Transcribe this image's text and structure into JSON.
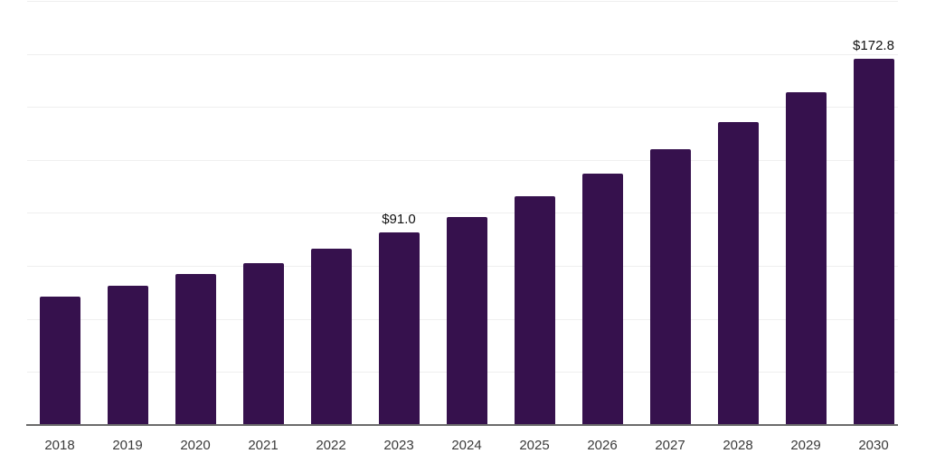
{
  "chart_data": {
    "type": "bar",
    "title": "",
    "xlabel": "",
    "ylabel": "",
    "categories": [
      "2018",
      "2019",
      "2020",
      "2021",
      "2022",
      "2023",
      "2024",
      "2025",
      "2026",
      "2027",
      "2028",
      "2029",
      "2030"
    ],
    "values": [
      60.6,
      65.7,
      71.3,
      76.5,
      83.0,
      91.0,
      97.9,
      108.1,
      118.4,
      130.0,
      142.8,
      157.0,
      172.8
    ],
    "data_labels": [
      {
        "category": "2023",
        "text": "$91.0"
      },
      {
        "category": "2030",
        "text": "$172.8"
      }
    ],
    "ylim": [
      0,
      200
    ],
    "gridline_step": 25,
    "grid": "horizontal",
    "legend": "none",
    "y_axis_tick_labels_visible": false,
    "colors": {
      "bar": "#36114d",
      "gridline": "#efefef",
      "axis_line": "#6b6b6b",
      "data_label_text": "#111111",
      "tick_label_text": "#3a3a3a",
      "background": "#ffffff"
    }
  }
}
